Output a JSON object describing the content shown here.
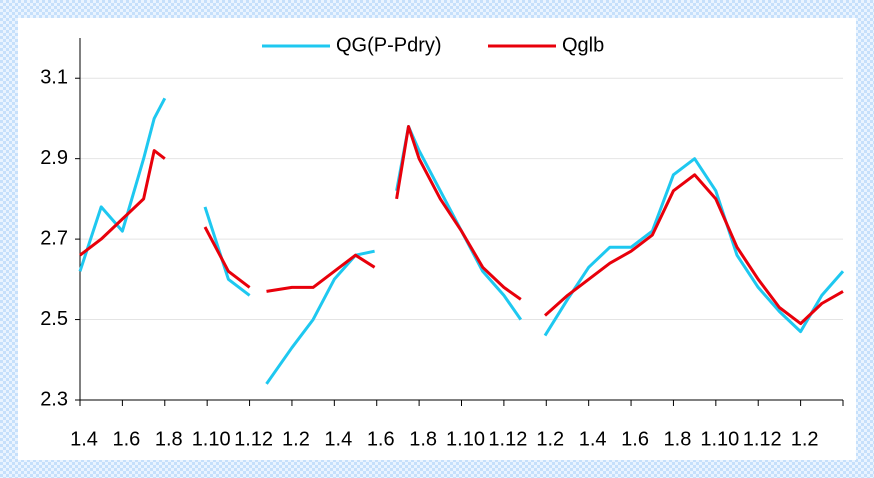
{
  "chart_data": {
    "type": "line",
    "x": [
      0,
      0.5,
      1,
      1.5,
      1.75,
      2,
      2.5,
      2.95,
      3.5,
      4,
      4.2,
      4.4,
      5,
      5.5,
      6,
      6.5,
      6.95,
      7.2,
      7.47,
      7.75,
      8,
      8.5,
      9,
      9.5,
      10,
      10.4,
      10.7,
      10.97,
      11.5,
      12,
      12.5,
      13,
      13.5,
      14,
      14.5,
      15,
      15.5,
      16,
      16.5,
      17,
      17.5,
      18
    ],
    "series": [
      {
        "name": "QG(P-Pdry)",
        "color": "#1ec8f0",
        "values": [
          2.62,
          2.78,
          2.72,
          2.9,
          3.0,
          3.05,
          null,
          2.78,
          2.6,
          2.56,
          null,
          2.34,
          2.43,
          2.5,
          2.6,
          2.66,
          2.67,
          null,
          2.82,
          2.98,
          2.92,
          2.82,
          2.72,
          2.62,
          2.56,
          2.5,
          null,
          2.46,
          2.55,
          2.63,
          2.68,
          2.68,
          2.72,
          2.86,
          2.9,
          2.82,
          2.66,
          2.58,
          2.52,
          2.47,
          2.56,
          2.62
        ]
      },
      {
        "name": "Qglb",
        "color": "#e8000b",
        "values": [
          2.66,
          2.7,
          2.75,
          2.8,
          2.92,
          2.9,
          null,
          2.73,
          2.62,
          2.58,
          null,
          2.57,
          2.58,
          2.58,
          2.62,
          2.66,
          2.63,
          null,
          2.8,
          2.98,
          2.9,
          2.8,
          2.72,
          2.63,
          2.58,
          2.55,
          null,
          2.51,
          2.56,
          2.6,
          2.64,
          2.67,
          2.71,
          2.82,
          2.86,
          2.8,
          2.68,
          2.6,
          2.53,
          2.49,
          2.54,
          2.57
        ]
      }
    ],
    "xlim": [
      0,
      18
    ],
    "xticks": [
      {
        "value": 0,
        "label": "1.4"
      },
      {
        "value": 1,
        "label": "1.6"
      },
      {
        "value": 2,
        "label": "1.8"
      },
      {
        "value": 3,
        "label": "1.10"
      },
      {
        "value": 4,
        "label": "1.12"
      },
      {
        "value": 5,
        "label": "1.2"
      },
      {
        "value": 6,
        "label": "1.4"
      },
      {
        "value": 7,
        "label": "1.6"
      },
      {
        "value": 8,
        "label": "1.8"
      },
      {
        "value": 9,
        "label": "1.10"
      },
      {
        "value": 10,
        "label": "1.12"
      },
      {
        "value": 11,
        "label": "1.2"
      },
      {
        "value": 12,
        "label": "1.4"
      },
      {
        "value": 13,
        "label": "1.6"
      },
      {
        "value": 14,
        "label": "1.8"
      },
      {
        "value": 15,
        "label": "1.10"
      },
      {
        "value": 16,
        "label": "1.12"
      },
      {
        "value": 17,
        "label": "1.2"
      }
    ],
    "ylim": [
      2.3,
      3.2
    ],
    "yticks": [
      2.3,
      2.5,
      2.7,
      2.9,
      3.1
    ],
    "grid": true,
    "legend": "top"
  }
}
